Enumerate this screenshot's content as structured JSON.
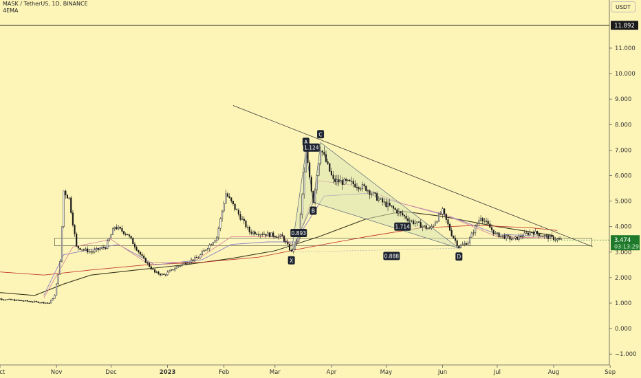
{
  "header": {
    "symbol_line": "MASK / TetherUS, 1D, BINANCE",
    "indicator": "4EMA"
  },
  "price_scale": {
    "currency_button": "USDT",
    "high_marker": "11.892",
    "last_price": "3.474",
    "countdown": "03:13:29"
  },
  "colors": {
    "background": "#fdf5b8",
    "candle_up": "#ffffff",
    "candle_down": "#1a1a1a",
    "ema_black": "#3a3a20",
    "ema_red": "#c0392b",
    "ema_purple": "#8c7fc4",
    "ema_pink": "#d98a9a",
    "pattern_fill": "#d9e3b0",
    "last_price_bg": "#1e7a2a"
  },
  "chart_data": {
    "type": "candlestick",
    "title": "MASK / TetherUS, 1D, BINANCE",
    "yaxis": {
      "ticks": [
        -1.0,
        0.0,
        1.0,
        2.0,
        3.0,
        4.0,
        5.0,
        6.0,
        7.0,
        8.0,
        9.0,
        10.0,
        11.0
      ],
      "tick_labels": [
        "−1.000",
        "0.000",
        "1.000",
        "2.000",
        "3.000",
        "4.000",
        "5.000",
        "6.000",
        "7.000",
        "8.000",
        "9.000",
        "10.000",
        "11.000"
      ],
      "ylim": [
        -1.45,
        12.95
      ]
    },
    "xaxis": {
      "labels": [
        "Oct",
        "Nov",
        "Dec",
        "2023",
        "Feb",
        "Mar",
        "Apr",
        "May",
        "Jun",
        "Jul",
        "Aug",
        "Sep"
      ],
      "label_dates": [
        "2022-10-01",
        "2022-11-01",
        "2022-12-01",
        "2023-01-01",
        "2023-02-01",
        "2023-03-01",
        "2023-04-01",
        "2023-05-01",
        "2023-06-01",
        "2023-07-01",
        "2023-08-01",
        "2023-09-01"
      ]
    },
    "horizontal_line": {
      "value": 11.892,
      "label": "11.892"
    },
    "last_price": 3.474,
    "support_zone": {
      "from": "2022-10-31",
      "to": "2023-08-22",
      "low": 3.25,
      "high": 3.55
    },
    "trendline": {
      "points": [
        [
          "2023-02-06",
          8.75
        ],
        [
          "2023-08-08",
          3.35
        ]
      ]
    },
    "harmonic_pattern": {
      "points": [
        {
          "name": "X",
          "date": "2023-03-10",
          "value": 3.0
        },
        {
          "name": "A",
          "date": "2023-03-18",
          "value": 7.0
        },
        {
          "name": "B",
          "date": "2023-03-22",
          "value": 4.95
        },
        {
          "name": "C",
          "date": "2023-03-26",
          "value": 7.3
        },
        {
          "name": "D",
          "date": "2023-06-10",
          "value": 3.15
        }
      ],
      "ratios": [
        {
          "label": "1.124",
          "date": "2023-03-21",
          "value": 7.1
        },
        {
          "label": "0.893",
          "date": "2023-03-14",
          "value": 3.75
        },
        {
          "label": "1.714",
          "date": "2023-05-10",
          "value": 4.0
        },
        {
          "label": "0.888",
          "date": "2023-05-04",
          "value": 2.85
        }
      ]
    },
    "ema_series": [
      {
        "color": "#3a3a20",
        "points": [
          [
            "2022-09-25",
            1.45
          ],
          [
            "2022-10-20",
            1.3
          ],
          [
            "2022-11-05",
            1.75
          ],
          [
            "2022-11-20",
            2.1
          ],
          [
            "2022-12-15",
            2.3
          ],
          [
            "2023-01-10",
            2.5
          ],
          [
            "2023-02-05",
            2.75
          ],
          [
            "2023-03-01",
            3.05
          ],
          [
            "2023-03-25",
            3.6
          ],
          [
            "2023-04-20",
            4.3
          ],
          [
            "2023-05-10",
            4.6
          ],
          [
            "2023-06-01",
            4.4
          ],
          [
            "2023-07-01",
            4.0
          ],
          [
            "2023-08-01",
            3.65
          ]
        ]
      },
      {
        "color": "#c0392b",
        "points": [
          [
            "2022-09-25",
            2.25
          ],
          [
            "2022-10-25",
            2.1
          ],
          [
            "2022-11-20",
            2.3
          ],
          [
            "2022-12-20",
            2.5
          ],
          [
            "2023-01-20",
            2.6
          ],
          [
            "2023-02-20",
            2.8
          ],
          [
            "2023-03-20",
            3.2
          ],
          [
            "2023-04-20",
            3.6
          ],
          [
            "2023-05-20",
            3.95
          ],
          [
            "2023-06-20",
            4.05
          ],
          [
            "2023-07-20",
            3.95
          ],
          [
            "2023-08-03",
            3.85
          ]
        ]
      },
      {
        "color": "#8c7fc4",
        "points": [
          [
            "2022-10-25",
            1.3
          ],
          [
            "2022-11-05",
            2.9
          ],
          [
            "2022-11-20",
            3.1
          ],
          [
            "2022-12-05",
            3.3
          ],
          [
            "2022-12-25",
            2.5
          ],
          [
            "2023-01-20",
            2.7
          ],
          [
            "2023-02-05",
            3.3
          ],
          [
            "2023-02-25",
            3.4
          ],
          [
            "2023-03-12",
            3.4
          ],
          [
            "2023-03-28",
            5.2
          ],
          [
            "2023-04-20",
            5.3
          ],
          [
            "2023-05-15",
            4.8
          ],
          [
            "2023-06-05",
            4.4
          ],
          [
            "2023-07-01",
            3.7
          ],
          [
            "2023-08-01",
            3.6
          ]
        ]
      },
      {
        "color": "#d98a9a",
        "points": [
          [
            "2022-10-25",
            1.2
          ],
          [
            "2022-11-10",
            3.2
          ],
          [
            "2022-12-01",
            3.5
          ],
          [
            "2022-12-20",
            2.6
          ],
          [
            "2023-01-15",
            2.6
          ],
          [
            "2023-02-05",
            3.6
          ],
          [
            "2023-03-05",
            3.6
          ],
          [
            "2023-03-12",
            3.2
          ],
          [
            "2023-03-25",
            5.8
          ],
          [
            "2023-04-15",
            5.6
          ],
          [
            "2023-05-10",
            4.9
          ],
          [
            "2023-06-01",
            4.5
          ],
          [
            "2023-07-01",
            3.6
          ],
          [
            "2023-08-01",
            3.55
          ]
        ]
      }
    ],
    "price_path": [
      [
        "2022-09-25",
        1.2
      ],
      [
        "2022-10-20",
        1.05
      ],
      [
        "2022-10-28",
        1.0
      ],
      [
        "2022-10-31",
        1.3
      ],
      [
        "2022-11-03",
        2.6
      ],
      [
        "2022-11-05",
        5.4
      ],
      [
        "2022-11-08",
        5.1
      ],
      [
        "2022-11-12",
        3.2
      ],
      [
        "2022-11-20",
        3.0
      ],
      [
        "2022-11-28",
        3.2
      ],
      [
        "2022-12-03",
        4.0
      ],
      [
        "2022-12-10",
        3.7
      ],
      [
        "2022-12-18",
        2.8
      ],
      [
        "2022-12-25",
        2.2
      ],
      [
        "2022-12-30",
        2.1
      ],
      [
        "2023-01-08",
        2.5
      ],
      [
        "2023-01-18",
        2.8
      ],
      [
        "2023-01-28",
        3.6
      ],
      [
        "2023-02-02",
        5.3
      ],
      [
        "2023-02-08",
        4.6
      ],
      [
        "2023-02-15",
        3.8
      ],
      [
        "2023-02-25",
        3.7
      ],
      [
        "2023-03-05",
        3.6
      ],
      [
        "2023-03-10",
        3.0
      ],
      [
        "2023-03-14",
        3.6
      ],
      [
        "2023-03-18",
        6.9
      ],
      [
        "2023-03-22",
        5.0
      ],
      [
        "2023-03-26",
        7.1
      ],
      [
        "2023-04-02",
        5.8
      ],
      [
        "2023-04-12",
        5.7
      ],
      [
        "2023-04-20",
        5.5
      ],
      [
        "2023-04-28",
        5.0
      ],
      [
        "2023-05-05",
        4.7
      ],
      [
        "2023-05-15",
        4.2
      ],
      [
        "2023-05-25",
        3.9
      ],
      [
        "2023-06-01",
        4.6
      ],
      [
        "2023-06-06",
        3.7
      ],
      [
        "2023-06-10",
        3.2
      ],
      [
        "2023-06-15",
        3.4
      ],
      [
        "2023-06-22",
        4.4
      ],
      [
        "2023-06-30",
        3.7
      ],
      [
        "2023-07-10",
        3.5
      ],
      [
        "2023-07-20",
        3.8
      ],
      [
        "2023-07-28",
        3.6
      ],
      [
        "2023-08-05",
        3.47
      ]
    ]
  }
}
